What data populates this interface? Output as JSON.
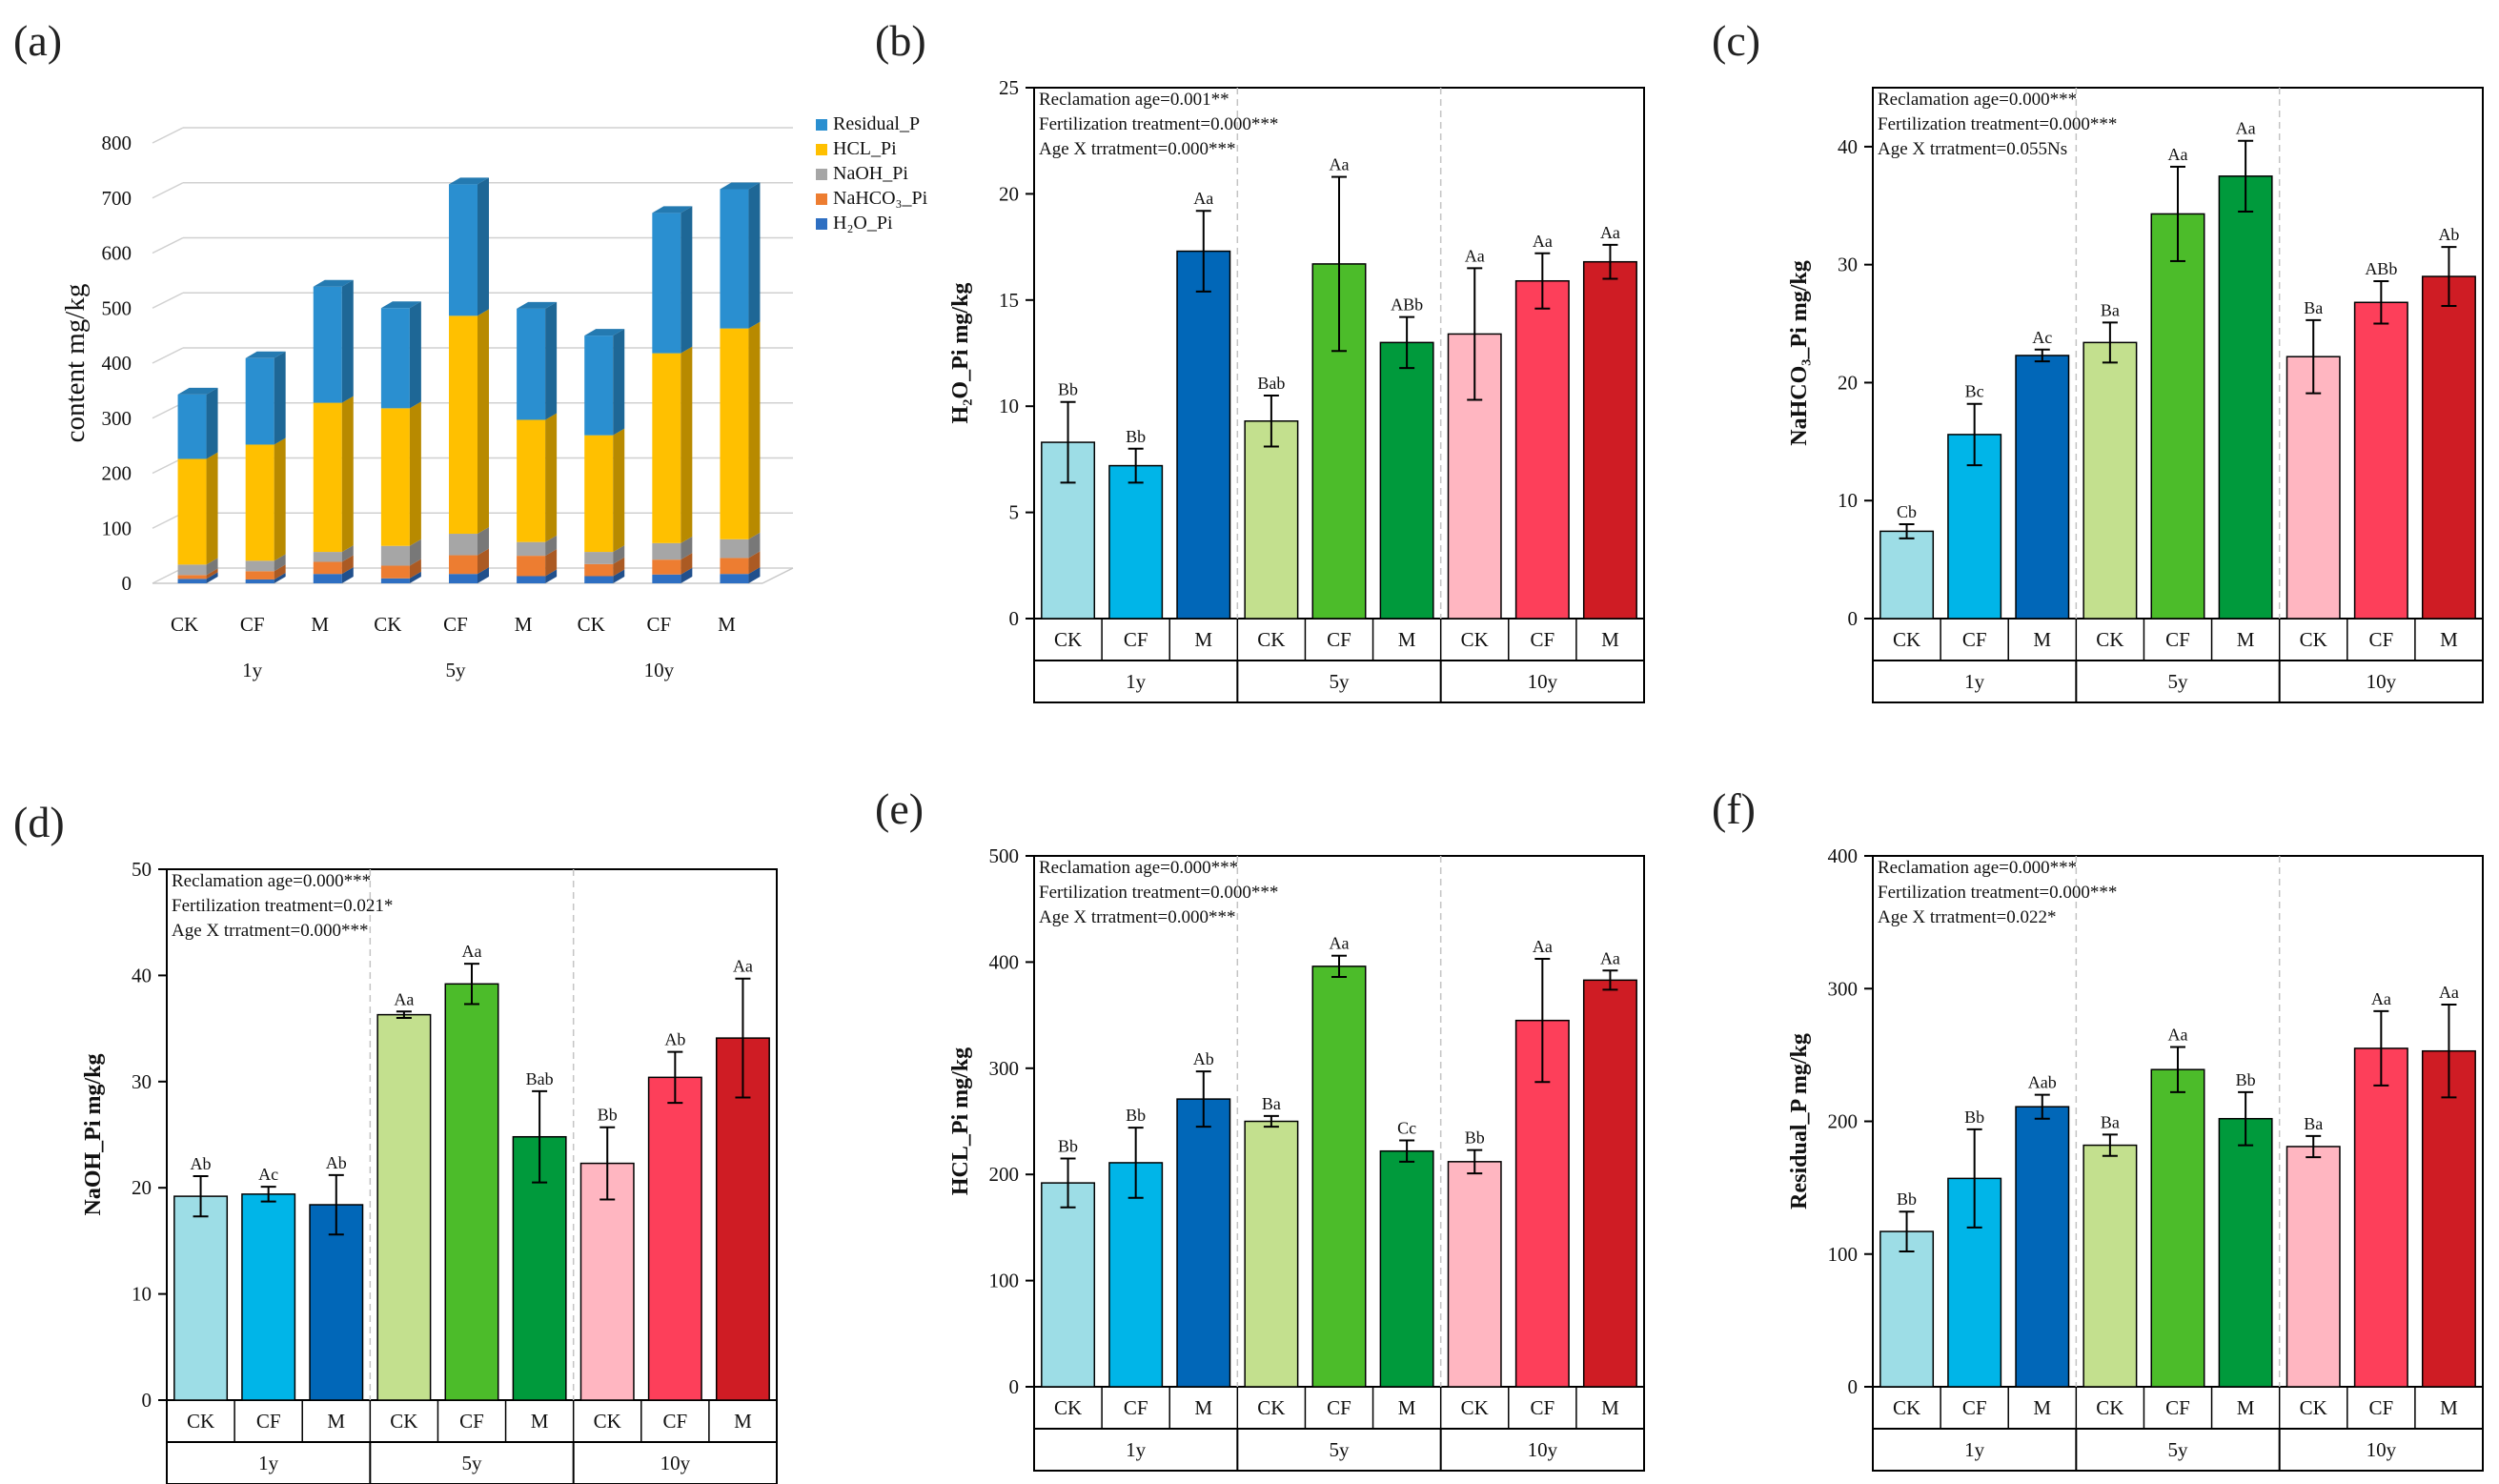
{
  "panel_a": {
    "label": "(a)",
    "ylabel": "content  mg/kg",
    "yticks": [
      "0",
      "100",
      "200",
      "300",
      "400",
      "500",
      "600",
      "700",
      "800"
    ],
    "categories": [
      "CK",
      "CF",
      "M",
      "CK",
      "CF",
      "M",
      "CK",
      "CF",
      "M"
    ],
    "groups": [
      "1y",
      "5y",
      "10y"
    ],
    "legend": [
      "Residual_P",
      "HCL_Pi",
      "NaOH_Pi",
      "NaHCO₃_Pi",
      "H₂O_Pi"
    ]
  },
  "colors": {
    "legend": [
      "#2a8fd0",
      "#ffc000",
      "#a6a6a6",
      "#ed7d31",
      "#2e6fc2"
    ],
    "bars": [
      "#9ddde6",
      "#00b5e8",
      "#0167b8",
      "#c3e08e",
      "#4cbc2a",
      "#009a3c",
      "#ffb6c1",
      "#fd3f5a",
      "#cf1c24"
    ]
  },
  "chart_data": [
    {
      "type": "bar",
      "title": "(a)",
      "stacked": true,
      "ylabel": "content  mg/kg",
      "ylim": [
        0,
        800
      ],
      "categories": [
        "CK",
        "CF",
        "M",
        "CK",
        "CF",
        "M",
        "CK",
        "CF",
        "M"
      ],
      "groups": [
        "1y",
        "5y",
        "10y"
      ],
      "series": [
        {
          "name": "H₂O_Pi",
          "values": [
            8,
            7,
            17,
            9,
            17,
            13,
            13,
            16,
            17
          ]
        },
        {
          "name": "NaHCO₃_Pi",
          "values": [
            7,
            15,
            22,
            23,
            34,
            37,
            22,
            27,
            29
          ]
        },
        {
          "name": "NaOH_Pi",
          "values": [
            19,
            19,
            18,
            36,
            39,
            25,
            22,
            30,
            34
          ]
        },
        {
          "name": "HCL_Pi",
          "values": [
            192,
            211,
            271,
            250,
            396,
            222,
            212,
            345,
            383
          ]
        },
        {
          "name": "Residual_P",
          "values": [
            117,
            157,
            211,
            182,
            239,
            202,
            181,
            255,
            253
          ]
        }
      ]
    },
    {
      "type": "bar",
      "title": "(b)",
      "ylabel": "H₂O_Pi mg/kg",
      "ylim": [
        0,
        25
      ],
      "yticks": [
        "0",
        "5",
        "10",
        "15",
        "20",
        "25"
      ],
      "categories": [
        "CK",
        "CF",
        "M",
        "CK",
        "CF",
        "M",
        "CK",
        "CF",
        "M"
      ],
      "groups": [
        "1y",
        "5y",
        "10y"
      ],
      "values": [
        8.3,
        7.2,
        17.3,
        9.3,
        16.7,
        13.0,
        13.4,
        15.9,
        16.8
      ],
      "errors": [
        1.9,
        0.8,
        1.9,
        1.2,
        4.1,
        1.2,
        3.1,
        1.3,
        0.8
      ],
      "labels": [
        "Bb",
        "Bb",
        "Aa",
        "Bab",
        "Aa",
        "ABb",
        "Aa",
        "Aa",
        "Aa"
      ],
      "stats": [
        "Reclamation age=0.001**",
        "Fertilization treatment=0.000***",
        "Age X trratment=0.000***"
      ]
    },
    {
      "type": "bar",
      "title": "(c)",
      "ylabel": "NaHCO₃_Pi mg/kg",
      "ylim": [
        0,
        45
      ],
      "yticks": [
        "0",
        "10",
        "20",
        "30",
        "40"
      ],
      "categories": [
        "CK",
        "CF",
        "M",
        "CK",
        "CF",
        "M",
        "CK",
        "CF",
        "M"
      ],
      "groups": [
        "1y",
        "5y",
        "10y"
      ],
      "values": [
        7.4,
        15.6,
        22.3,
        23.4,
        34.3,
        37.5,
        22.2,
        26.8,
        29.0
      ],
      "errors": [
        0.6,
        2.6,
        0.5,
        1.7,
        4.0,
        3.0,
        3.1,
        1.8,
        2.5
      ],
      "labels": [
        "Cb",
        "Bc",
        "Ac",
        "Ba",
        "Aa",
        "Aa",
        "Ba",
        "ABb",
        "Ab"
      ],
      "stats": [
        "Reclamation age=0.000***",
        "Fertilization treatment=0.000***",
        "Age X trratment=0.055Ns"
      ]
    },
    {
      "type": "bar",
      "title": "(d)",
      "ylabel": "NaOH_Pi mg/kg",
      "ylim": [
        0,
        50
      ],
      "yticks": [
        "0",
        "10",
        "20",
        "30",
        "40",
        "50"
      ],
      "categories": [
        "CK",
        "CF",
        "M",
        "CK",
        "CF",
        "M",
        "CK",
        "CF",
        "M"
      ],
      "groups": [
        "1y",
        "5y",
        "10y"
      ],
      "values": [
        19.2,
        19.4,
        18.4,
        36.3,
        39.2,
        24.8,
        22.3,
        30.4,
        34.1
      ],
      "errors": [
        1.9,
        0.7,
        2.8,
        0.3,
        1.9,
        4.3,
        3.4,
        2.4,
        5.6
      ],
      "labels": [
        "Ab",
        "Ac",
        "Ab",
        "Aa",
        "Aa",
        "Bab",
        "Bb",
        "Ab",
        "Aa"
      ],
      "stats": [
        "Reclamation age=0.000***",
        "Fertilization treatment=0.021*",
        "Age X trratment=0.000***"
      ]
    },
    {
      "type": "bar",
      "title": "(e)",
      "ylabel": "HCL_Pi mg/kg",
      "ylim": [
        0,
        500
      ],
      "yticks": [
        "0",
        "100",
        "200",
        "300",
        "400",
        "500"
      ],
      "categories": [
        "CK",
        "CF",
        "M",
        "CK",
        "CF",
        "M",
        "CK",
        "CF",
        "M"
      ],
      "groups": [
        "1y",
        "5y",
        "10y"
      ],
      "values": [
        192,
        211,
        271,
        250,
        396,
        222,
        212,
        345,
        383
      ],
      "errors": [
        23,
        33,
        26,
        5,
        10,
        10,
        11,
        58,
        9
      ],
      "labels": [
        "Bb",
        "Bb",
        "Ab",
        "Ba",
        "Aa",
        "Cc",
        "Bb",
        "Aa",
        "Aa"
      ],
      "stats": [
        "Reclamation age=0.000***",
        "Fertilization treatment=0.000***",
        "Age X trratment=0.000***"
      ]
    },
    {
      "type": "bar",
      "title": "(f)",
      "ylabel": "Residual_P mg/kg",
      "ylim": [
        0,
        400
      ],
      "yticks": [
        "0",
        "100",
        "200",
        "300",
        "400"
      ],
      "categories": [
        "CK",
        "CF",
        "M",
        "CK",
        "CF",
        "M",
        "CK",
        "CF",
        "M"
      ],
      "groups": [
        "1y",
        "5y",
        "10y"
      ],
      "values": [
        117,
        157,
        211,
        182,
        239,
        202,
        181,
        255,
        253
      ],
      "errors": [
        15,
        37,
        9,
        8,
        17,
        20,
        8,
        28,
        35
      ],
      "labels": [
        "Bb",
        "Bb",
        "Aab",
        "Ba",
        "Aa",
        "Bb",
        "Ba",
        "Aa",
        "Aa"
      ],
      "stats": [
        "Reclamation age=0.000***",
        "Fertilization treatment=0.000***",
        "Age X trratment=0.022*"
      ]
    }
  ]
}
